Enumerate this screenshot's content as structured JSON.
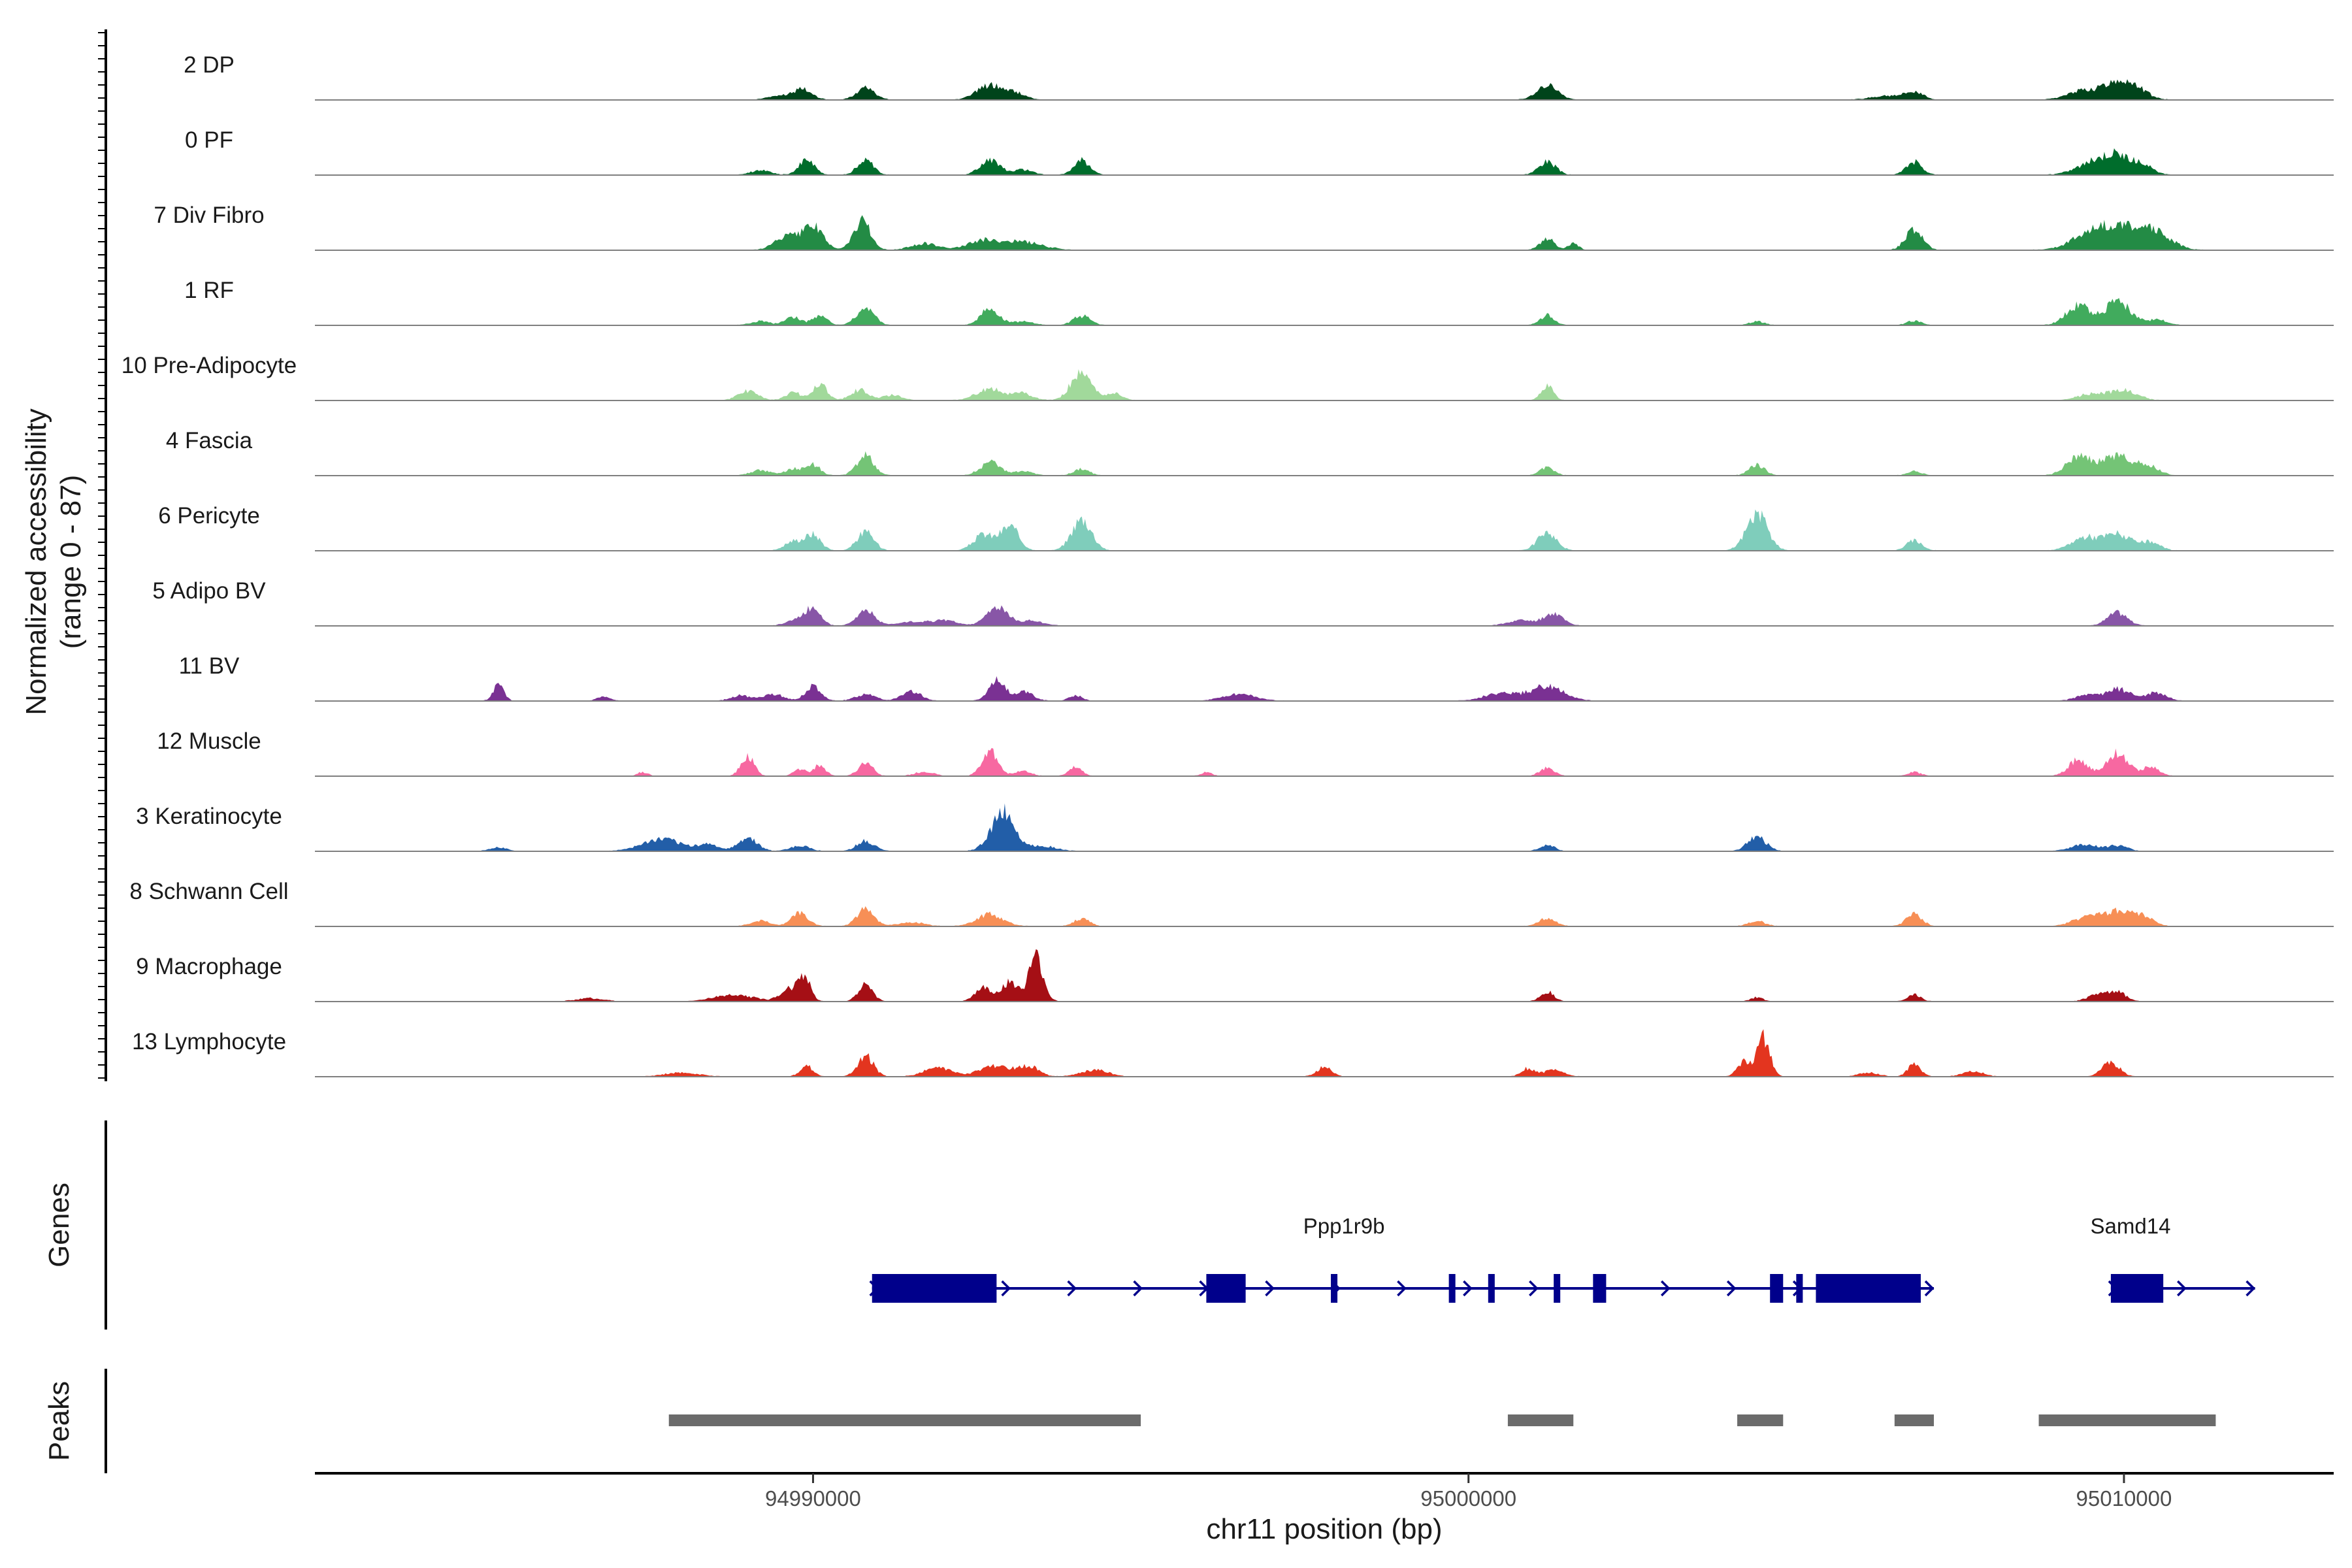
{
  "chart_data": {
    "type": "area",
    "title": "",
    "chromosome": "chr11",
    "ylabel_line1": "Normalized accessibility",
    "ylabel_line2": "(range 0 - 87)",
    "y_range": [
      0,
      87
    ],
    "xlabel": "chr11 position (bp)",
    "xlim": [
      94982400,
      95013200
    ],
    "x_ticks": [
      94990000,
      95000000,
      95010000
    ],
    "x_tick_labels": [
      "94990000",
      "95000000",
      "95010000"
    ],
    "genes_panel_label": "Genes",
    "peaks_panel_label": "Peaks",
    "tracks": [
      {
        "name": "2 DP",
        "color": "#00441b",
        "peaks": [
          [
            94989500,
            6,
            180
          ],
          [
            94989850,
            15,
            140
          ],
          [
            94990800,
            18,
            140
          ],
          [
            94992700,
            22,
            200
          ],
          [
            94993100,
            9,
            150
          ],
          [
            95001200,
            22,
            160
          ],
          [
            95006400,
            6,
            250
          ],
          [
            95006800,
            12,
            130
          ],
          [
            95009400,
            14,
            250
          ],
          [
            95009900,
            24,
            200
          ],
          [
            95010200,
            14,
            180
          ]
        ]
      },
      {
        "name": "0 PF",
        "color": "#006d2c",
        "peaks": [
          [
            94989200,
            7,
            150
          ],
          [
            94989900,
            22,
            120
          ],
          [
            94990800,
            24,
            120
          ],
          [
            94992700,
            22,
            150
          ],
          [
            94993200,
            8,
            150
          ],
          [
            94994100,
            23,
            120
          ],
          [
            95001200,
            20,
            130
          ],
          [
            95006800,
            20,
            120
          ],
          [
            95009500,
            16,
            250
          ],
          [
            95009900,
            28,
            220
          ],
          [
            95010300,
            12,
            150
          ]
        ]
      },
      {
        "name": "7 Div Fibro",
        "color": "#238b45",
        "peaks": [
          [
            94989600,
            22,
            180
          ],
          [
            94990000,
            36,
            150
          ],
          [
            94990750,
            45,
            130
          ],
          [
            94991700,
            10,
            200
          ],
          [
            94992600,
            14,
            250
          ],
          [
            94993200,
            12,
            300
          ],
          [
            95001200,
            18,
            110
          ],
          [
            95001600,
            10,
            80
          ],
          [
            95006800,
            32,
            130
          ],
          [
            95009500,
            22,
            300
          ],
          [
            95010000,
            30,
            350
          ],
          [
            95010500,
            18,
            250
          ]
        ]
      },
      {
        "name": "1 RF",
        "color": "#41ab5d",
        "peaks": [
          [
            94989200,
            6,
            150
          ],
          [
            94989700,
            12,
            120
          ],
          [
            94990100,
            15,
            110
          ],
          [
            94990800,
            28,
            130
          ],
          [
            94992700,
            25,
            140
          ],
          [
            94993200,
            6,
            150
          ],
          [
            94994100,
            14,
            130
          ],
          [
            95001200,
            15,
            110
          ],
          [
            95004400,
            6,
            110
          ],
          [
            95006800,
            7,
            110
          ],
          [
            95009300,
            30,
            180
          ],
          [
            95009900,
            35,
            200
          ],
          [
            95010500,
            8,
            150
          ]
        ]
      },
      {
        "name": "10 Pre-Adipocyte",
        "color": "#a1d99b",
        "peaks": [
          [
            94989000,
            14,
            150
          ],
          [
            94989700,
            12,
            120
          ],
          [
            94990100,
            25,
            110
          ],
          [
            94990700,
            16,
            130
          ],
          [
            94991200,
            8,
            150
          ],
          [
            94992700,
            18,
            200
          ],
          [
            94993200,
            10,
            150
          ],
          [
            94994100,
            45,
            160
          ],
          [
            94994600,
            10,
            120
          ],
          [
            95001200,
            22,
            90
          ],
          [
            95009500,
            10,
            200
          ],
          [
            95010000,
            16,
            200
          ]
        ]
      },
      {
        "name": "4 Fascia",
        "color": "#74c476",
        "peaks": [
          [
            94989200,
            8,
            150
          ],
          [
            94989700,
            10,
            120
          ],
          [
            94990000,
            16,
            110
          ],
          [
            94990800,
            30,
            130
          ],
          [
            94992700,
            20,
            150
          ],
          [
            94993200,
            6,
            150
          ],
          [
            94994100,
            10,
            120
          ],
          [
            95001200,
            12,
            110
          ],
          [
            95004400,
            16,
            120
          ],
          [
            95006800,
            6,
            110
          ],
          [
            95009300,
            28,
            180
          ],
          [
            95009900,
            30,
            250
          ],
          [
            95010400,
            12,
            150
          ]
        ]
      },
      {
        "name": "6 Pericyte",
        "color": "#7fcdbb",
        "peaks": [
          [
            94989700,
            14,
            130
          ],
          [
            94990000,
            24,
            120
          ],
          [
            94990800,
            28,
            130
          ],
          [
            94992600,
            24,
            150
          ],
          [
            94993000,
            36,
            140
          ],
          [
            94994100,
            48,
            150
          ],
          [
            95001200,
            28,
            140
          ],
          [
            95004400,
            55,
            160
          ],
          [
            95006800,
            15,
            120
          ],
          [
            95009400,
            20,
            200
          ],
          [
            95009900,
            25,
            200
          ],
          [
            95010400,
            12,
            150
          ]
        ]
      },
      {
        "name": "5 Adipo BV",
        "color": "#8856a7",
        "peaks": [
          [
            94989800,
            10,
            180
          ],
          [
            94990000,
            20,
            120
          ],
          [
            94990800,
            24,
            140
          ],
          [
            94991500,
            6,
            200
          ],
          [
            94992000,
            8,
            200
          ],
          [
            94992800,
            30,
            150
          ],
          [
            94993300,
            8,
            200
          ],
          [
            95000800,
            8,
            200
          ],
          [
            95001300,
            18,
            150
          ],
          [
            95009900,
            20,
            150
          ]
        ]
      },
      {
        "name": "11 BV",
        "color": "#7a3193",
        "peaks": [
          [
            94985200,
            24,
            80
          ],
          [
            94986800,
            6,
            100
          ],
          [
            94988900,
            8,
            150
          ],
          [
            94989400,
            10,
            150
          ],
          [
            94990000,
            22,
            120
          ],
          [
            94990800,
            10,
            150
          ],
          [
            94991500,
            14,
            150
          ],
          [
            94992800,
            32,
            120
          ],
          [
            94993200,
            14,
            150
          ],
          [
            94994000,
            8,
            100
          ],
          [
            94996500,
            10,
            250
          ],
          [
            95000500,
            12,
            250
          ],
          [
            95001200,
            22,
            250
          ],
          [
            95009400,
            8,
            150
          ],
          [
            95009900,
            18,
            200
          ],
          [
            95010500,
            12,
            150
          ]
        ]
      },
      {
        "name": "12 Muscle",
        "color": "#f768a1",
        "peaks": [
          [
            94987400,
            6,
            80
          ],
          [
            94989000,
            30,
            100
          ],
          [
            94989800,
            10,
            100
          ],
          [
            94990100,
            16,
            90
          ],
          [
            94990800,
            20,
            110
          ],
          [
            94991700,
            6,
            150
          ],
          [
            94992700,
            38,
            120
          ],
          [
            94993200,
            8,
            120
          ],
          [
            94994000,
            14,
            100
          ],
          [
            94996000,
            6,
            80
          ],
          [
            95001200,
            12,
            110
          ],
          [
            95006800,
            6,
            100
          ],
          [
            95009300,
            24,
            150
          ],
          [
            95009900,
            35,
            160
          ],
          [
            95010400,
            14,
            130
          ]
        ]
      },
      {
        "name": "3 Keratinocyte",
        "color": "#225ea8",
        "peaks": [
          [
            94985200,
            6,
            120
          ],
          [
            94987700,
            18,
            300
          ],
          [
            94988400,
            10,
            150
          ],
          [
            94989000,
            20,
            150
          ],
          [
            94989800,
            8,
            150
          ],
          [
            94990800,
            16,
            130
          ],
          [
            94992900,
            60,
            180
          ],
          [
            94993500,
            8,
            200
          ],
          [
            95001200,
            10,
            110
          ],
          [
            95004400,
            22,
            140
          ],
          [
            95009400,
            10,
            200
          ],
          [
            95009900,
            8,
            150
          ]
        ]
      },
      {
        "name": "8 Schwann Cell",
        "color": "#f78f56",
        "peaks": [
          [
            94989200,
            8,
            150
          ],
          [
            94989800,
            20,
            130
          ],
          [
            94990800,
            26,
            130
          ],
          [
            94991500,
            6,
            200
          ],
          [
            94992700,
            18,
            200
          ],
          [
            94994100,
            12,
            120
          ],
          [
            95001200,
            12,
            130
          ],
          [
            95004400,
            8,
            130
          ],
          [
            95006800,
            18,
            120
          ],
          [
            95009400,
            12,
            200
          ],
          [
            95009900,
            22,
            250
          ],
          [
            95010300,
            12,
            150
          ]
        ]
      },
      {
        "name": "9 Macrophage",
        "color": "#a50f15",
        "peaks": [
          [
            94986600,
            5,
            200
          ],
          [
            94988800,
            10,
            300
          ],
          [
            94989600,
            16,
            120
          ],
          [
            94989850,
            40,
            100
          ],
          [
            94990800,
            25,
            110
          ],
          [
            94992600,
            20,
            130
          ],
          [
            94993000,
            30,
            120
          ],
          [
            94993400,
            65,
            110
          ],
          [
            95001200,
            15,
            100
          ],
          [
            95004400,
            6,
            100
          ],
          [
            95006800,
            10,
            100
          ],
          [
            95009600,
            10,
            150
          ],
          [
            95009900,
            14,
            130
          ]
        ]
      },
      {
        "name": "13 Lymphocyte",
        "color": "#e3351f",
        "peaks": [
          [
            94988000,
            6,
            250
          ],
          [
            94989900,
            16,
            100
          ],
          [
            94990800,
            32,
            120
          ],
          [
            94991900,
            14,
            200
          ],
          [
            94992800,
            16,
            250
          ],
          [
            94993300,
            14,
            150
          ],
          [
            94994300,
            10,
            200
          ],
          [
            94997800,
            14,
            110
          ],
          [
            95000900,
            12,
            100
          ],
          [
            95001300,
            10,
            150
          ],
          [
            95004200,
            22,
            100
          ],
          [
            95004500,
            60,
            100
          ],
          [
            95006100,
            6,
            150
          ],
          [
            95006800,
            18,
            100
          ],
          [
            95007700,
            8,
            150
          ],
          [
            95009800,
            22,
            130
          ]
        ]
      }
    ],
    "genes": [
      {
        "name": "Ppp1r9b",
        "strand": "+",
        "start": 94990900,
        "end": 95007000,
        "exons": [
          [
            94990900,
            94992800
          ],
          [
            94996000,
            94996600
          ],
          [
            94997900,
            94998000
          ],
          [
            94999700,
            94999800
          ],
          [
            95000300,
            95000400
          ],
          [
            95001300,
            95001400
          ],
          [
            95001900,
            95002100
          ],
          [
            95004600,
            95004800
          ],
          [
            95005000,
            95005100
          ],
          [
            95005300,
            95006900
          ]
        ]
      },
      {
        "name": "Samd14",
        "strand": "+",
        "start": 95009800,
        "end": 95011900,
        "exons": [
          [
            95009800,
            95010600
          ]
        ]
      }
    ],
    "peaks": [
      [
        94987800,
        94995000
      ],
      [
        95000600,
        95001600
      ],
      [
        95004100,
        95004800
      ],
      [
        95006500,
        95007100
      ],
      [
        95008700,
        95011400
      ]
    ]
  }
}
